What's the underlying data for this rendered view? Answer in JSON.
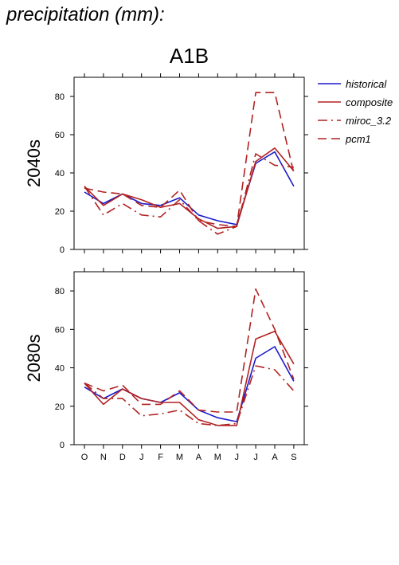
{
  "title": "precipitation (mm):",
  "scenario": "A1B",
  "chart_data": [
    {
      "type": "line",
      "row_label": "2040s",
      "x": [
        "O",
        "N",
        "D",
        "J",
        "F",
        "M",
        "A",
        "M",
        "J",
        "J",
        "A",
        "S"
      ],
      "ylim": [
        0,
        90
      ],
      "yticks": [
        0,
        20,
        40,
        60,
        80
      ],
      "series": [
        {
          "name": "historical",
          "color": "#1a1acc",
          "dash": "solid",
          "values": [
            30,
            24,
            29,
            24,
            23,
            27,
            18,
            15,
            13,
            45,
            51,
            33
          ]
        },
        {
          "name": "composite",
          "color": "#b22222",
          "dash": "solid",
          "values": [
            33,
            23,
            29,
            26,
            22,
            24,
            16,
            11,
            12,
            46,
            53,
            41
          ]
        },
        {
          "name": "miroc_3.2",
          "color": "#b22222",
          "dash": "dashdot",
          "values": [
            33,
            18,
            24,
            18,
            17,
            26,
            15,
            8,
            12,
            50,
            44,
            43
          ]
        },
        {
          "name": "pcm1",
          "color": "#b22222",
          "dash": "dash",
          "values": [
            32,
            30,
            29,
            23,
            22,
            31,
            15,
            13,
            12,
            82,
            82,
            40
          ]
        }
      ]
    },
    {
      "type": "line",
      "row_label": "2080s",
      "x": [
        "O",
        "N",
        "D",
        "J",
        "F",
        "M",
        "A",
        "M",
        "J",
        "J",
        "A",
        "S"
      ],
      "ylim": [
        0,
        90
      ],
      "yticks": [
        0,
        20,
        40,
        60,
        80
      ],
      "series": [
        {
          "name": "historical",
          "color": "#1a1acc",
          "dash": "solid",
          "values": [
            30,
            24,
            29,
            24,
            22,
            27,
            18,
            14,
            12,
            45,
            51,
            33
          ]
        },
        {
          "name": "composite",
          "color": "#b22222",
          "dash": "solid",
          "values": [
            32,
            21,
            29,
            24,
            22,
            22,
            13,
            10,
            10,
            55,
            59,
            42
          ]
        },
        {
          "name": "miroc_3.2",
          "color": "#b22222",
          "dash": "dashdot",
          "values": [
            32,
            24,
            24,
            15,
            16,
            18,
            11,
            10,
            11,
            41,
            39,
            28
          ]
        },
        {
          "name": "pcm1",
          "color": "#b22222",
          "dash": "dash",
          "values": [
            32,
            28,
            31,
            21,
            21,
            28,
            18,
            17,
            17,
            81,
            60,
            34
          ]
        }
      ]
    }
  ]
}
